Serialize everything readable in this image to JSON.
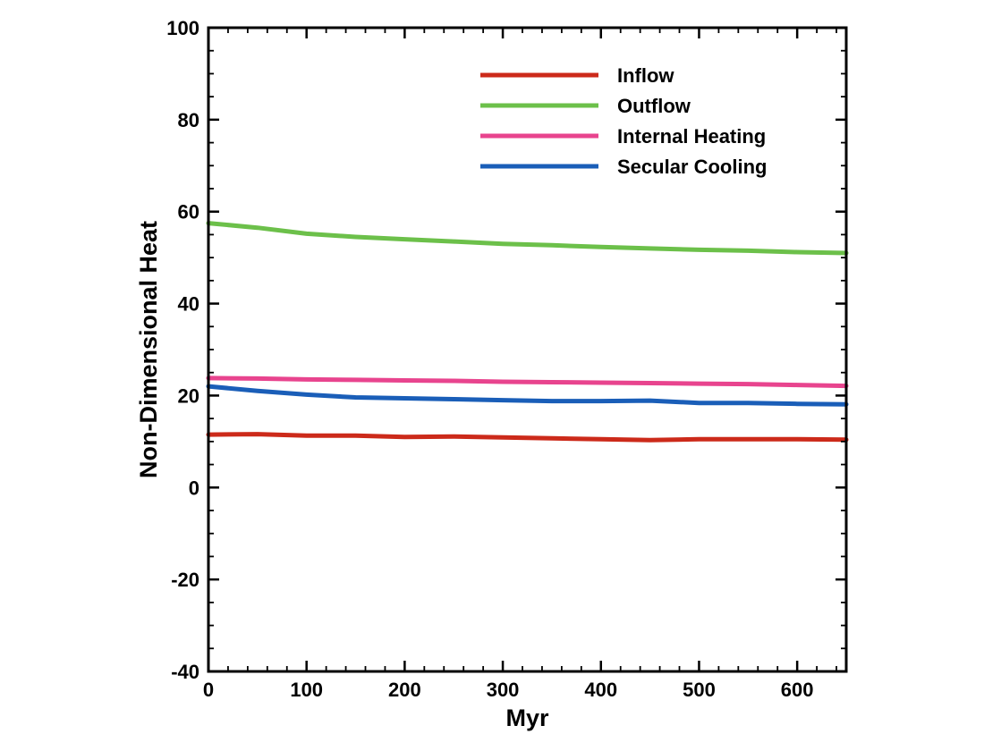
{
  "chart_data": {
    "type": "line",
    "title": "",
    "xlabel": "Myr",
    "ylabel": "Non-Dimensional Heat",
    "xlim": [
      0,
      650
    ],
    "ylim": [
      -40,
      100
    ],
    "xticks": [
      0,
      100,
      200,
      300,
      400,
      500,
      600
    ],
    "yticks": [
      -40,
      -20,
      0,
      20,
      40,
      60,
      80,
      100
    ],
    "grid": false,
    "legend_position": "top-right",
    "series": [
      {
        "name": "Inflow",
        "color": "#cc2a1a",
        "x": [
          0,
          50,
          100,
          150,
          200,
          250,
          300,
          350,
          400,
          450,
          500,
          550,
          600,
          650
        ],
        "y": [
          11.5,
          11.6,
          11.3,
          11.3,
          11.0,
          11.1,
          10.9,
          10.7,
          10.5,
          10.3,
          10.5,
          10.5,
          10.5,
          10.4
        ]
      },
      {
        "name": "Outflow",
        "color": "#6cc04a",
        "x": [
          0,
          50,
          100,
          150,
          200,
          250,
          300,
          350,
          400,
          450,
          500,
          550,
          600,
          650
        ],
        "y": [
          57.5,
          56.5,
          55.2,
          54.5,
          54.0,
          53.5,
          53.0,
          52.7,
          52.3,
          52.0,
          51.7,
          51.5,
          51.2,
          51.0
        ]
      },
      {
        "name": "Internal Heating",
        "color": "#e8448e",
        "x": [
          0,
          50,
          100,
          150,
          200,
          250,
          300,
          350,
          400,
          450,
          500,
          550,
          600,
          650
        ],
        "y": [
          23.8,
          23.7,
          23.5,
          23.4,
          23.3,
          23.2,
          23.0,
          22.9,
          22.8,
          22.7,
          22.6,
          22.5,
          22.3,
          22.1
        ]
      },
      {
        "name": "Secular Cooling",
        "color": "#1a5eb8",
        "x": [
          0,
          50,
          100,
          150,
          200,
          250,
          300,
          350,
          400,
          450,
          500,
          550,
          600,
          650
        ],
        "y": [
          22.0,
          21.0,
          20.2,
          19.6,
          19.4,
          19.2,
          19.0,
          18.8,
          18.8,
          18.9,
          18.4,
          18.4,
          18.2,
          18.1
        ]
      }
    ]
  }
}
